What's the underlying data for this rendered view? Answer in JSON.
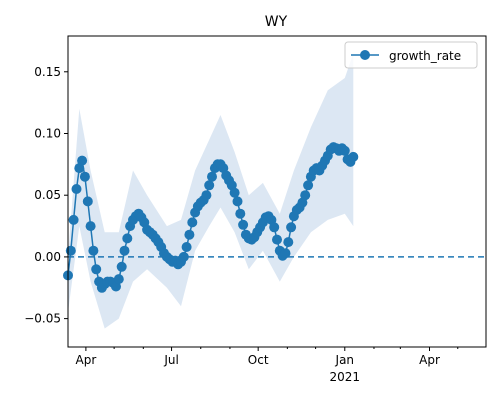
{
  "chart_data": {
    "type": "line",
    "title": "WY",
    "xlabel": "",
    "ylabel": "",
    "x_range": [
      "2020-03-13",
      "2021-05-31"
    ],
    "ylim": [
      -0.073,
      0.179
    ],
    "grid": false,
    "legend": {
      "placement": "top-right",
      "entries": [
        "growth_rate"
      ]
    },
    "colors": {
      "series": "#1f77b4",
      "band": "#dce7f3",
      "reference_line": "#1f77b4"
    },
    "reference_line": {
      "y": 0,
      "style": "dashed"
    },
    "x_ticks": [
      {
        "value": "2020-04-01",
        "label": "Apr"
      },
      {
        "value": "2020-07-01",
        "label": "Jul"
      },
      {
        "value": "2020-10-01",
        "label": "Oct"
      },
      {
        "value": "2021-01-01",
        "label": "Jan"
      },
      {
        "value": "2021-04-01",
        "label": "Apr"
      }
    ],
    "x_minor_ticks": [
      "2020-05-01",
      "2020-06-01",
      "2020-08-01",
      "2020-09-01",
      "2020-11-01",
      "2020-12-01",
      "2021-02-01",
      "2021-03-01",
      "2021-05-01"
    ],
    "year_label": {
      "value": "2021-01-01",
      "label": "2021"
    },
    "y_ticks": [
      {
        "value": -0.05,
        "label": "−0.05"
      },
      {
        "value": 0.0,
        "label": "0.00"
      },
      {
        "value": 0.05,
        "label": "0.05"
      },
      {
        "value": 0.1,
        "label": "0.10"
      },
      {
        "value": 0.15,
        "label": "0.15"
      }
    ],
    "series": [
      {
        "name": "growth_rate",
        "marker": "circle",
        "points": [
          [
            "2020-03-13",
            -0.015
          ],
          [
            "2020-03-16",
            0.005
          ],
          [
            "2020-03-19",
            0.03
          ],
          [
            "2020-03-22",
            0.055
          ],
          [
            "2020-03-25",
            0.072
          ],
          [
            "2020-03-28",
            0.078
          ],
          [
            "2020-03-31",
            0.065
          ],
          [
            "2020-04-03",
            0.045
          ],
          [
            "2020-04-06",
            0.025
          ],
          [
            "2020-04-09",
            0.005
          ],
          [
            "2020-04-12",
            -0.01
          ],
          [
            "2020-04-15",
            -0.02
          ],
          [
            "2020-04-18",
            -0.025
          ],
          [
            "2020-04-21",
            -0.022
          ],
          [
            "2020-04-24",
            -0.02
          ],
          [
            "2020-04-27",
            -0.02
          ],
          [
            "2020-04-30",
            -0.021
          ],
          [
            "2020-05-03",
            -0.024
          ],
          [
            "2020-05-06",
            -0.018
          ],
          [
            "2020-05-09",
            -0.008
          ],
          [
            "2020-05-12",
            0.005
          ],
          [
            "2020-05-15",
            0.015
          ],
          [
            "2020-05-18",
            0.025
          ],
          [
            "2020-05-21",
            0.03
          ],
          [
            "2020-05-24",
            0.033
          ],
          [
            "2020-05-27",
            0.035
          ],
          [
            "2020-05-30",
            0.032
          ],
          [
            "2020-06-02",
            0.028
          ],
          [
            "2020-06-05",
            0.022
          ],
          [
            "2020-06-08",
            0.02
          ],
          [
            "2020-06-11",
            0.018
          ],
          [
            "2020-06-14",
            0.015
          ],
          [
            "2020-06-17",
            0.012
          ],
          [
            "2020-06-20",
            0.008
          ],
          [
            "2020-06-23",
            0.003
          ],
          [
            "2020-06-26",
            0.0
          ],
          [
            "2020-06-29",
            -0.002
          ],
          [
            "2020-07-02",
            -0.004
          ],
          [
            "2020-07-05",
            -0.003
          ],
          [
            "2020-07-08",
            -0.006
          ],
          [
            "2020-07-11",
            -0.004
          ],
          [
            "2020-07-14",
            0.0
          ],
          [
            "2020-07-17",
            0.008
          ],
          [
            "2020-07-20",
            0.018
          ],
          [
            "2020-07-23",
            0.028
          ],
          [
            "2020-07-26",
            0.036
          ],
          [
            "2020-07-29",
            0.041
          ],
          [
            "2020-08-01",
            0.044
          ],
          [
            "2020-08-04",
            0.046
          ],
          [
            "2020-08-07",
            0.05
          ],
          [
            "2020-08-10",
            0.058
          ],
          [
            "2020-08-13",
            0.065
          ],
          [
            "2020-08-16",
            0.072
          ],
          [
            "2020-08-19",
            0.075
          ],
          [
            "2020-08-22",
            0.075
          ],
          [
            "2020-08-25",
            0.072
          ],
          [
            "2020-08-28",
            0.066
          ],
          [
            "2020-08-31",
            0.062
          ],
          [
            "2020-09-03",
            0.058
          ],
          [
            "2020-09-06",
            0.052
          ],
          [
            "2020-09-09",
            0.045
          ],
          [
            "2020-09-12",
            0.035
          ],
          [
            "2020-09-15",
            0.026
          ],
          [
            "2020-09-18",
            0.018
          ],
          [
            "2020-09-21",
            0.015
          ],
          [
            "2020-09-24",
            0.014
          ],
          [
            "2020-09-27",
            0.016
          ],
          [
            "2020-09-30",
            0.02
          ],
          [
            "2020-10-03",
            0.024
          ],
          [
            "2020-10-06",
            0.028
          ],
          [
            "2020-10-09",
            0.032
          ],
          [
            "2020-10-12",
            0.033
          ],
          [
            "2020-10-15",
            0.03
          ],
          [
            "2020-10-18",
            0.024
          ],
          [
            "2020-10-21",
            0.014
          ],
          [
            "2020-10-24",
            0.005
          ],
          [
            "2020-10-27",
            0.001
          ],
          [
            "2020-10-30",
            0.003
          ],
          [
            "2020-11-02",
            0.012
          ],
          [
            "2020-11-05",
            0.024
          ],
          [
            "2020-11-08",
            0.033
          ],
          [
            "2020-11-11",
            0.038
          ],
          [
            "2020-11-14",
            0.04
          ],
          [
            "2020-11-17",
            0.044
          ],
          [
            "2020-11-20",
            0.05
          ],
          [
            "2020-11-23",
            0.058
          ],
          [
            "2020-11-26",
            0.065
          ],
          [
            "2020-11-29",
            0.07
          ],
          [
            "2020-12-02",
            0.072
          ],
          [
            "2020-12-05",
            0.07
          ],
          [
            "2020-12-08",
            0.074
          ],
          [
            "2020-12-11",
            0.078
          ],
          [
            "2020-12-14",
            0.082
          ],
          [
            "2020-12-17",
            0.087
          ],
          [
            "2020-12-20",
            0.089
          ],
          [
            "2020-12-23",
            0.088
          ],
          [
            "2020-12-26",
            0.086
          ],
          [
            "2020-12-29",
            0.088
          ],
          [
            "2021-01-01",
            0.086
          ],
          [
            "2021-01-04",
            0.079
          ],
          [
            "2021-01-07",
            0.077
          ],
          [
            "2021-01-10",
            0.081
          ]
        ]
      }
    ],
    "band": [
      [
        "2020-03-13",
        -0.045,
        0.0
      ],
      [
        "2020-03-25",
        0.025,
        0.12
      ],
      [
        "2020-04-06",
        -0.02,
        0.07
      ],
      [
        "2020-04-21",
        -0.058,
        0.02
      ],
      [
        "2020-05-06",
        -0.05,
        0.02
      ],
      [
        "2020-05-21",
        -0.02,
        0.07
      ],
      [
        "2020-06-05",
        -0.01,
        0.05
      ],
      [
        "2020-06-26",
        -0.025,
        0.025
      ],
      [
        "2020-07-11",
        -0.04,
        0.03
      ],
      [
        "2020-07-26",
        0.005,
        0.07
      ],
      [
        "2020-08-10",
        0.025,
        0.095
      ],
      [
        "2020-08-22",
        0.04,
        0.115
      ],
      [
        "2020-09-06",
        0.02,
        0.085
      ],
      [
        "2020-09-21",
        -0.01,
        0.05
      ],
      [
        "2020-10-06",
        0.005,
        0.06
      ],
      [
        "2020-10-24",
        -0.02,
        0.035
      ],
      [
        "2020-11-08",
        0.0,
        0.07
      ],
      [
        "2020-11-26",
        0.02,
        0.105
      ],
      [
        "2020-12-14",
        0.03,
        0.135
      ],
      [
        "2021-01-01",
        0.035,
        0.145
      ],
      [
        "2021-01-10",
        0.025,
        0.165
      ]
    ]
  }
}
